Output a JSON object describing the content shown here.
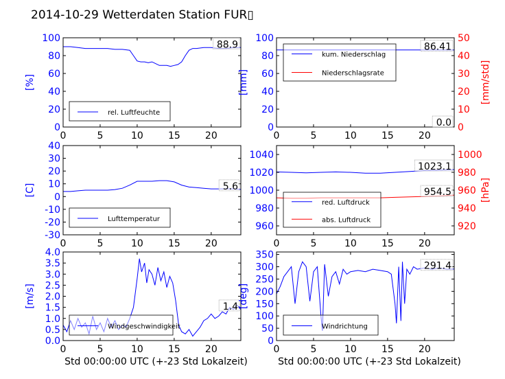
{
  "title": "2014-10-29 Wetterdaten Station FUR▯",
  "colors": {
    "blue": "#0000ff",
    "red": "#ff0000",
    "axis": "#000000"
  },
  "chart_data": [
    {
      "id": "humidity",
      "type": "line",
      "xlabel": "",
      "ylabel": "[%]",
      "xlim": [
        0,
        24
      ],
      "ylim": [
        0,
        100
      ],
      "xticks": [
        0,
        5,
        10,
        15,
        20
      ],
      "yticks": [
        0,
        20,
        40,
        60,
        80,
        100
      ],
      "last_value": "88.9",
      "legend": "bottom-left",
      "series": [
        {
          "name": "rel. Luftfeuchte",
          "color": "#0000ff",
          "x": [
            0,
            1,
            2,
            3,
            4,
            5,
            6,
            7,
            8,
            9,
            9.5,
            10,
            10.5,
            11,
            11.5,
            12,
            12.5,
            13,
            13.5,
            14,
            14.5,
            15,
            15.5,
            16,
            16.5,
            17,
            17.5,
            18,
            19,
            20,
            21,
            22,
            23,
            24
          ],
          "y": [
            90,
            90,
            89,
            88,
            88,
            88,
            88,
            87,
            87,
            86,
            80,
            74,
            73,
            73,
            72,
            73,
            71,
            69,
            69,
            69,
            68,
            69,
            70,
            73,
            80,
            86,
            88,
            88,
            89,
            89,
            88,
            88,
            89,
            89
          ]
        }
      ]
    },
    {
      "id": "precip",
      "type": "line",
      "xlabel": "",
      "ylabel": "[mm]",
      "ylabel_right": "[mm/std]",
      "xlim": [
        0,
        24
      ],
      "ylim": [
        0,
        100
      ],
      "ylim_right": [
        0,
        50
      ],
      "xticks": [
        0,
        5,
        10,
        15,
        20
      ],
      "yticks": [
        0,
        20,
        40,
        60,
        80,
        100
      ],
      "yticks_right": [
        0,
        10,
        20,
        30,
        40,
        50
      ],
      "last_value": "86.41",
      "last_value_right": "0.0",
      "legend": "top-left",
      "series": [
        {
          "name": "kum. Niederschlag",
          "color": "#0000ff",
          "axis": "left",
          "x": [
            0,
            24
          ],
          "y": [
            86.41,
            86.41
          ]
        },
        {
          "name": "Niederschlagsrate",
          "color": "#ff0000",
          "axis": "right",
          "x": [
            0,
            24
          ],
          "y": [
            0,
            0
          ]
        }
      ]
    },
    {
      "id": "temperature",
      "type": "line",
      "xlabel": "",
      "ylabel": "[C]",
      "xlim": [
        0,
        24
      ],
      "ylim": [
        -30,
        40
      ],
      "xticks": [
        0,
        5,
        10,
        15,
        20
      ],
      "yticks": [
        -30,
        -20,
        -10,
        0,
        10,
        20,
        30,
        40
      ],
      "last_value": "5.6",
      "legend": "bottom-left",
      "series": [
        {
          "name": "Lufttemperatur",
          "color": "#0000ff",
          "x": [
            0,
            1,
            2,
            3,
            4,
            5,
            6,
            7,
            8,
            9,
            10,
            11,
            12,
            13,
            14,
            15,
            16,
            17,
            18,
            19,
            20,
            21,
            22,
            23,
            24
          ],
          "y": [
            4,
            4,
            4.5,
            5,
            5,
            5,
            5,
            5.5,
            6.5,
            9,
            12,
            12,
            12,
            12.5,
            12.5,
            11.5,
            9,
            7.5,
            7,
            6.5,
            6,
            6,
            6,
            6,
            5.6
          ]
        }
      ]
    },
    {
      "id": "pressure",
      "type": "line",
      "xlabel": "",
      "ylabel": "",
      "ylabel_right": "[hPa]",
      "xlim": [
        0,
        24
      ],
      "ylim": [
        950,
        1050
      ],
      "ylim_right": [
        910,
        1010
      ],
      "xticks": [
        0,
        5,
        10,
        15,
        20
      ],
      "yticks": [
        960,
        980,
        1000,
        1020,
        1040
      ],
      "yticks_right": [
        920,
        940,
        960,
        980,
        1000
      ],
      "last_value": "1023.1",
      "last_value_right": "954.5",
      "legend": "bottom-left",
      "series": [
        {
          "name": "red. Luftdruck",
          "color": "#0000ff",
          "axis": "left",
          "x": [
            0,
            2,
            4,
            6,
            8,
            10,
            12,
            14,
            16,
            18,
            20,
            22,
            24
          ],
          "y": [
            1020.5,
            1020,
            1019.5,
            1020,
            1020.5,
            1020,
            1019,
            1019,
            1020,
            1021,
            1022,
            1022.5,
            1023.1
          ]
        },
        {
          "name": "abs. Luftdruck",
          "color": "#ff0000",
          "axis": "right",
          "x": [
            0,
            2,
            4,
            6,
            8,
            10,
            12,
            14,
            16,
            18,
            20,
            22,
            24
          ],
          "y": [
            951.5,
            951,
            951,
            951.5,
            951.5,
            951.5,
            951.5,
            951.5,
            952,
            952.5,
            953,
            953.5,
            954.5
          ]
        }
      ]
    },
    {
      "id": "windspeed",
      "type": "line",
      "xlabel": "Std 00:00:00 UTC (+-23 Std Lokalzeit)",
      "ylabel": "[m/s]",
      "xlim": [
        0,
        24
      ],
      "ylim": [
        0,
        4
      ],
      "xticks": [
        0,
        5,
        10,
        15,
        20
      ],
      "yticks": [
        0,
        0.5,
        1,
        1.5,
        2,
        2.5,
        3,
        3.5,
        4
      ],
      "ytick_labels": [
        "0.0",
        "0.5",
        "1.0",
        "1.5",
        "2.0",
        "2.5",
        "3.0",
        "3.5",
        "4.0"
      ],
      "last_value": "1.4",
      "legend": "bottom-left",
      "series": [
        {
          "name": "Windgeschwindigkeit",
          "color": "#0000ff",
          "x": [
            0,
            0.5,
            1,
            1.5,
            2,
            2.5,
            3,
            3.5,
            4,
            4.5,
            5,
            5.5,
            6,
            6.5,
            7,
            7.5,
            8,
            8.5,
            9,
            9.5,
            10,
            10.3,
            10.6,
            11,
            11.3,
            11.6,
            12,
            12.4,
            12.8,
            13.2,
            13.6,
            14,
            14.4,
            14.8,
            15.2,
            15.6,
            16,
            16.5,
            17,
            17.5,
            18,
            18.5,
            19,
            19.5,
            20,
            20.5,
            21,
            21.5,
            22,
            22.5,
            23,
            23.5,
            24
          ],
          "y": [
            0.7,
            0.4,
            0.9,
            0.5,
            1.0,
            0.6,
            0.8,
            0.3,
            1.1,
            0.5,
            0.8,
            0.4,
            1.0,
            0.6,
            0.9,
            0.5,
            0.7,
            0.6,
            1.0,
            1.5,
            2.8,
            3.7,
            3.1,
            3.5,
            2.6,
            3.2,
            3.0,
            2.5,
            3.3,
            2.7,
            3.1,
            2.4,
            2.9,
            2.6,
            1.8,
            0.7,
            0.4,
            0.3,
            0.5,
            0.2,
            0.4,
            0.6,
            0.9,
            1.0,
            1.2,
            1.0,
            1.1,
            1.3,
            1.2,
            1.5,
            1.4,
            1.6,
            1.4
          ]
        }
      ]
    },
    {
      "id": "winddir",
      "type": "line",
      "xlabel": "Std 00:00:00 UTC (+-23 Std Lokalzeit)",
      "ylabel": "[deg]",
      "xlim": [
        0,
        24
      ],
      "ylim": [
        0,
        360
      ],
      "xticks": [
        0,
        5,
        10,
        15,
        20
      ],
      "yticks": [
        0,
        50,
        100,
        150,
        200,
        250,
        300,
        350
      ],
      "last_value": "291.4",
      "legend": "bottom-left",
      "series": [
        {
          "name": "Windrichtung",
          "color": "#0000ff",
          "x": [
            0,
            0.5,
            1,
            1.5,
            2,
            2.5,
            3,
            3.5,
            4,
            4.5,
            5,
            5.5,
            6,
            6.2,
            6.5,
            7,
            7.5,
            8,
            8.5,
            9,
            9.5,
            10,
            11,
            12,
            13,
            14,
            15,
            15.5,
            16,
            16.2,
            16.5,
            16.8,
            17,
            17.3,
            17.6,
            18,
            18.5,
            19,
            20,
            21,
            22,
            23,
            24
          ],
          "y": [
            190,
            220,
            260,
            280,
            300,
            150,
            280,
            320,
            300,
            160,
            280,
            300,
            100,
            40,
            310,
            180,
            260,
            280,
            230,
            290,
            270,
            280,
            285,
            280,
            290,
            285,
            280,
            270,
            150,
            70,
            300,
            80,
            320,
            150,
            290,
            270,
            300,
            290,
            295,
            290,
            295,
            290,
            291
          ]
        }
      ]
    }
  ]
}
